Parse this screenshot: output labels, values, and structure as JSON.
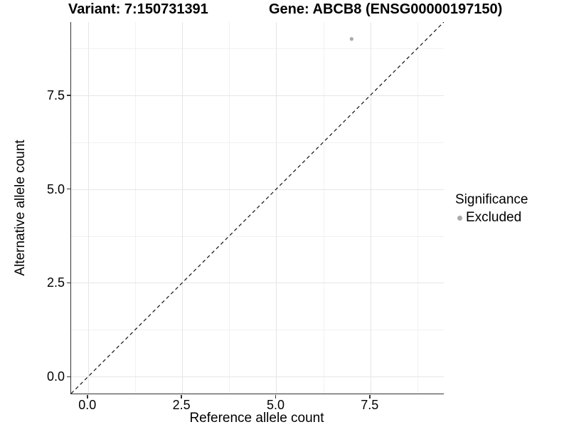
{
  "chart_data": {
    "type": "scatter",
    "title_left": "Variant: 7:150731391",
    "title_right": "Gene: ABCB8 (ENSG00000197150)",
    "xlabel": "Reference allele count",
    "ylabel": "Alternative allele count",
    "xlim": [
      -0.45,
      9.45
    ],
    "ylim": [
      -0.45,
      9.45
    ],
    "xticks": {
      "values": [
        0,
        2.5,
        5,
        7.5
      ],
      "labels": [
        "0.0",
        "2.5",
        "5.0",
        "7.5"
      ]
    },
    "yticks": {
      "values": [
        0,
        2.5,
        5,
        7.5
      ],
      "labels": [
        "0.0",
        "2.5",
        "5.0",
        "7.5"
      ]
    },
    "minor_gridlines": [
      1.25,
      3.75,
      6.25,
      8.75
    ],
    "grid": "major+minor",
    "points": [
      {
        "x": 7,
        "y": 9,
        "series": "Excluded"
      }
    ],
    "identity_line": {
      "equation": "y = x",
      "style": "dashed"
    },
    "legend": {
      "title": "Significance",
      "position": "right",
      "items": [
        {
          "label": "Excluded",
          "color": "#aaaaaa"
        }
      ]
    },
    "colors": {
      "point": "#aaaaaa",
      "axis_line": "#333333",
      "grid_major": "#e6e6e6",
      "grid_minor": "#f1f1f1",
      "dashed_line": "#111111"
    }
  }
}
